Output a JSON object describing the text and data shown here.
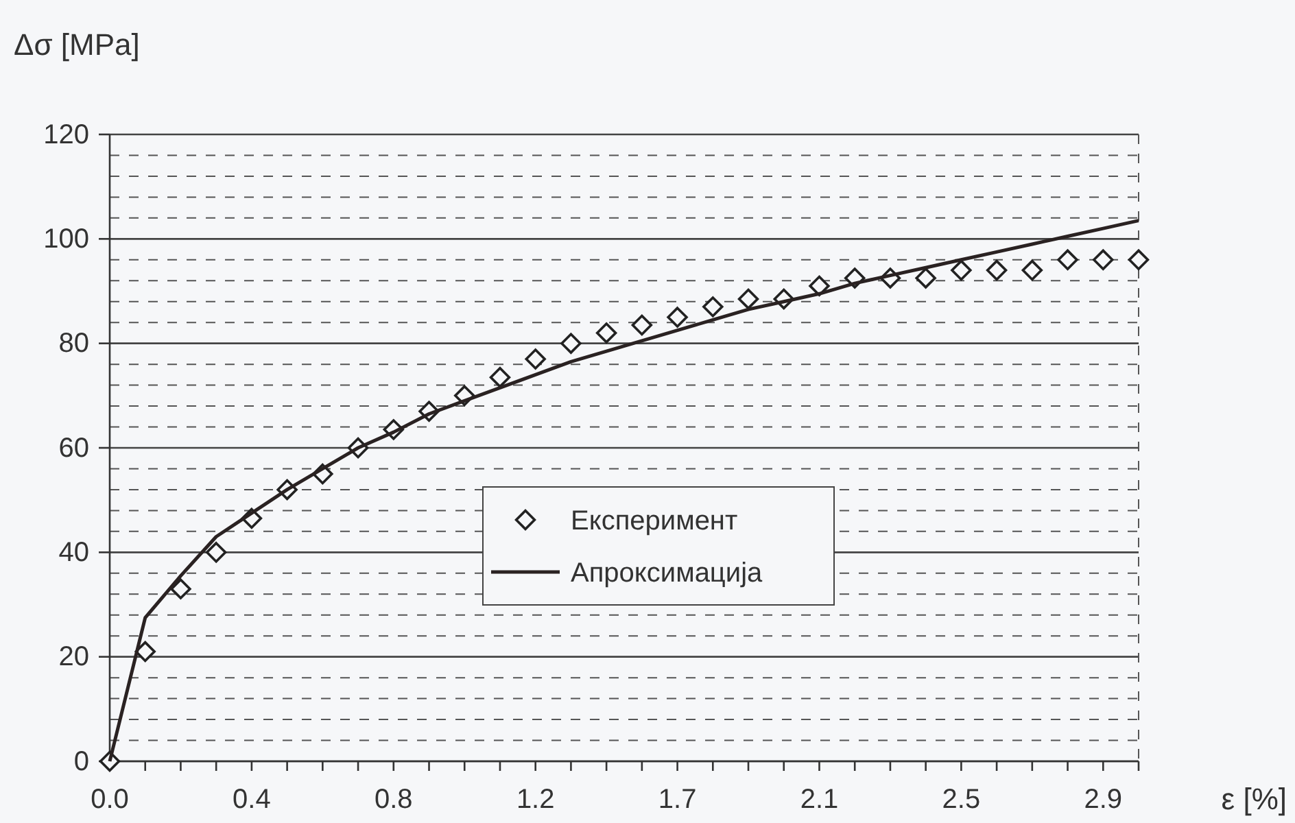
{
  "chart_data": {
    "type": "line",
    "xlabel": "ε [%]",
    "ylabel": "Δσ [MPa]",
    "categories": [
      "0.0",
      null,
      null,
      null,
      "0.4",
      null,
      null,
      null,
      "0.8",
      null,
      null,
      null,
      "1.2",
      null,
      null,
      null,
      "1.7",
      null,
      null,
      null,
      "2.1",
      null,
      null,
      null,
      "2.5",
      null,
      null,
      null,
      "2.9",
      null
    ],
    "ylim": [
      0,
      120
    ],
    "yticks": [
      0,
      {
        "value": 4,
        "label": null
      },
      {
        "value": 8,
        "label": null
      },
      {
        "value": 12,
        "label": null
      },
      {
        "value": 16,
        "label": null
      },
      20,
      {
        "value": 24,
        "label": null
      },
      {
        "value": 28,
        "label": null
      },
      {
        "value": 32,
        "label": null
      },
      {
        "value": 36,
        "label": null
      },
      40,
      {
        "value": 44,
        "label": null
      },
      {
        "value": 48,
        "label": null
      },
      {
        "value": 52,
        "label": null
      },
      {
        "value": 56,
        "label": null
      },
      60,
      {
        "value": 64,
        "label": null
      },
      {
        "value": 68,
        "label": null
      },
      {
        "value": 72,
        "label": null
      },
      {
        "value": 76,
        "label": null
      },
      80,
      {
        "value": 84,
        "label": null
      },
      {
        "value": 88,
        "label": null
      },
      {
        "value": 92,
        "label": null
      },
      {
        "value": 96,
        "label": null
      },
      100,
      {
        "value": 104,
        "label": null
      },
      {
        "value": 108,
        "label": null
      },
      {
        "value": 112,
        "label": null
      },
      {
        "value": 116,
        "label": null
      },
      120
    ],
    "grid": "y",
    "legend": "bottom",
    "series": [
      {
        "name": "Експеримент",
        "type": "scatter",
        "marker": "diamond",
        "color": "#222222",
        "values": [
          0,
          21,
          33,
          40,
          46.5,
          52,
          55,
          60,
          63.5,
          67,
          70,
          73.5,
          77,
          80,
          82,
          83.5,
          85,
          87,
          88.5,
          88.5,
          91,
          92.5,
          92.5,
          92.5,
          94,
          94,
          94,
          96,
          96,
          96
        ]
      },
      {
        "name": "Апроксимација",
        "type": "line",
        "marker": "none",
        "line_style": "solid",
        "color": "#2a2222",
        "values": [
          0,
          27.5,
          35.5,
          43,
          47.5,
          52,
          56,
          60,
          63,
          66.5,
          69,
          71.5,
          74,
          76.5,
          78.5,
          80.5,
          82.5,
          84.5,
          86.5,
          88,
          89.5,
          91.5,
          93,
          94.5,
          96,
          97.5,
          99,
          100.5,
          102,
          103.5
        ]
      }
    ]
  }
}
